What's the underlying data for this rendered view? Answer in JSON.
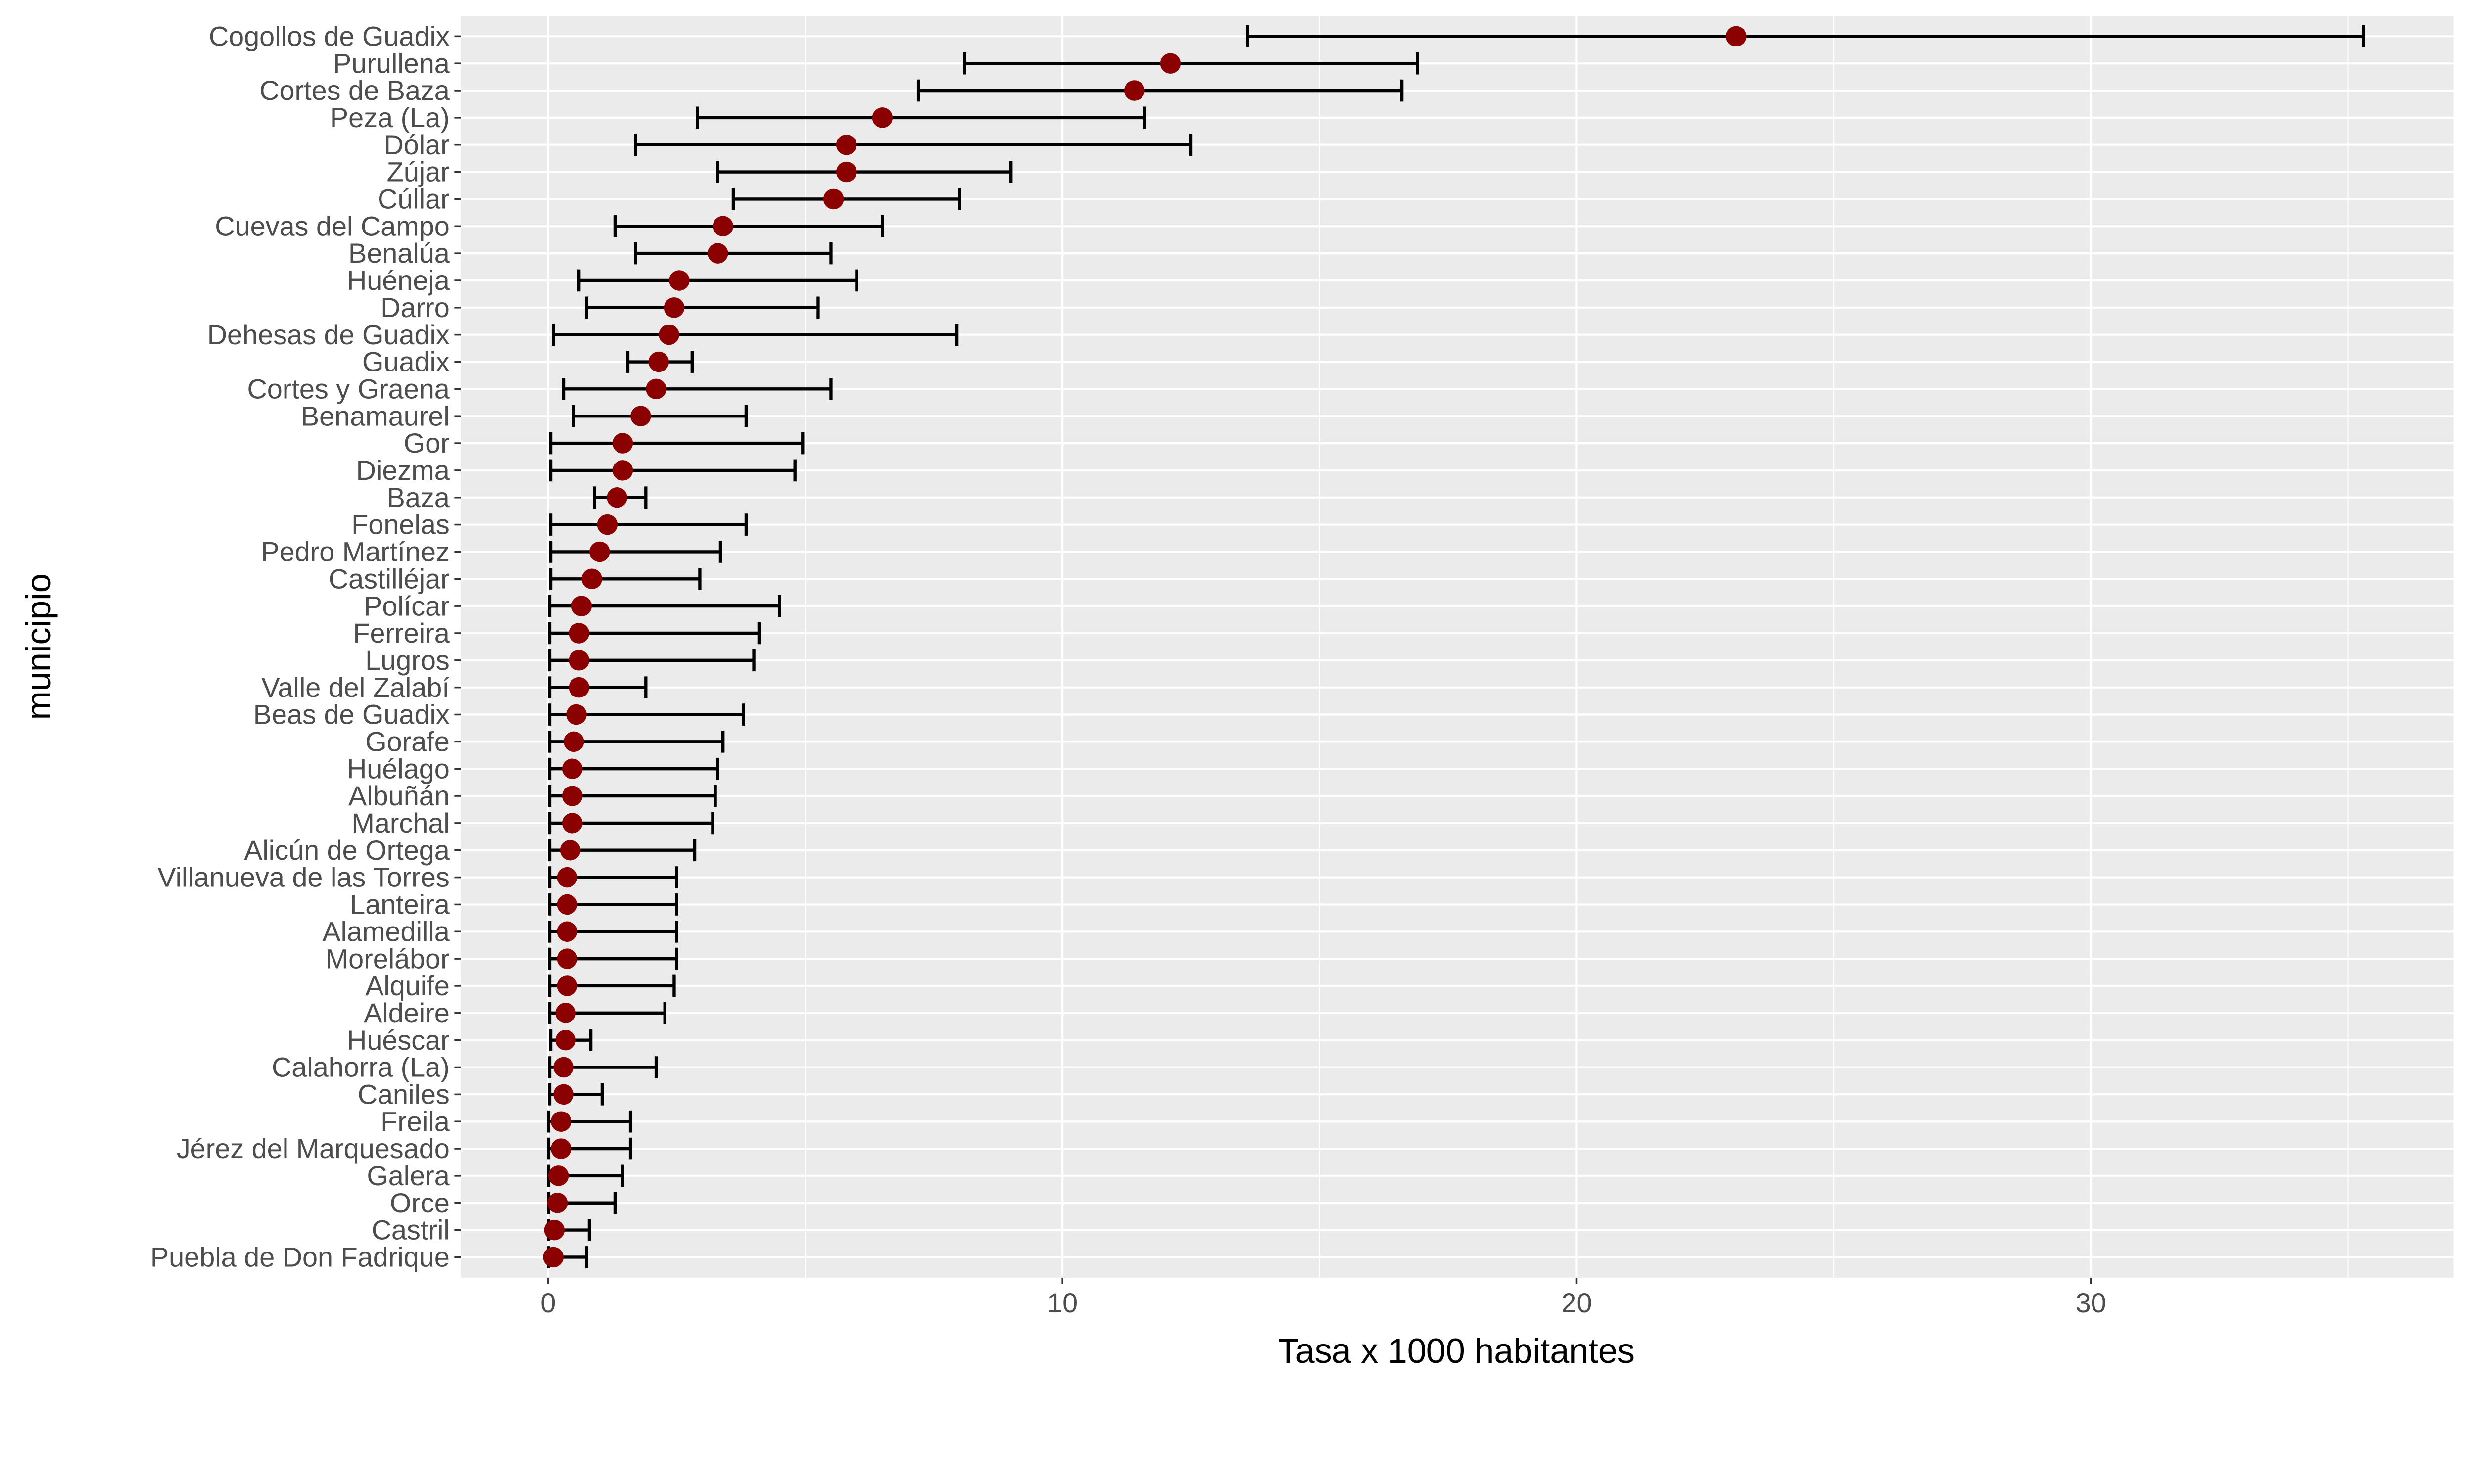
{
  "chart_data": {
    "type": "scatter",
    "subtype": "dot-with-errorbars",
    "title": "",
    "xlabel": "Tasa x 1000 habitantes",
    "ylabel": "municipio",
    "xlim": [
      -1.7,
      37.05
    ],
    "x_ticks": [
      0,
      10,
      20,
      30
    ],
    "grid": true,
    "point_color": "#8b0000",
    "errorbar_color": "#000000",
    "panel_color": "#ebebeb",
    "categories": [
      "Cogollos de Guadix",
      "Purullena",
      "Cortes de Baza",
      "Peza (La)",
      "Dólar",
      "Zújar",
      "Cúllar",
      "Cuevas del Campo",
      "Benalúa",
      "Huéneja",
      "Darro",
      "Dehesas de Guadix",
      "Guadix",
      "Cortes y Graena",
      "Benamaurel",
      "Gor",
      "Diezma",
      "Baza",
      "Fonelas",
      "Pedro Martínez",
      "Castilléjar",
      "Polícar",
      "Ferreira",
      "Lugros",
      "Valle del Zalabí",
      "Beas de Guadix",
      "Gorafe",
      "Huélago",
      "Albuñán",
      "Marchal",
      "Alicún de Ortega",
      "Villanueva de las Torres",
      "Lanteira",
      "Alamedilla",
      "Morelábor",
      "Alquife",
      "Aldeire",
      "Huéscar",
      "Calahorra (La)",
      "Caniles",
      "Freila",
      "Jérez del Marquesado",
      "Galera",
      "Orce",
      "Castril",
      "Puebla de Don Fadrique"
    ],
    "values": [
      23.1,
      12.1,
      11.4,
      6.5,
      5.8,
      5.8,
      5.55,
      3.4,
      3.3,
      2.55,
      2.45,
      2.35,
      2.15,
      2.1,
      1.8,
      1.45,
      1.45,
      1.34,
      1.15,
      1.0,
      0.85,
      0.65,
      0.6,
      0.6,
      0.6,
      0.55,
      0.5,
      0.47,
      0.47,
      0.47,
      0.43,
      0.37,
      0.37,
      0.37,
      0.37,
      0.37,
      0.34,
      0.34,
      0.3,
      0.3,
      0.25,
      0.25,
      0.2,
      0.18,
      0.12,
      0.1
    ],
    "lower": [
      13.6,
      8.1,
      7.2,
      2.9,
      1.7,
      3.3,
      3.6,
      1.3,
      1.7,
      0.6,
      0.75,
      0.1,
      1.55,
      0.3,
      0.5,
      0.05,
      0.05,
      0.9,
      0.05,
      0.05,
      0.05,
      0.03,
      0.03,
      0.03,
      0.03,
      0.03,
      0.03,
      0.03,
      0.03,
      0.03,
      0.03,
      0.03,
      0.03,
      0.03,
      0.03,
      0.03,
      0.03,
      0.05,
      0.03,
      0.03,
      0.01,
      0.01,
      0.01,
      0.01,
      0.01,
      0.01
    ],
    "upper": [
      35.3,
      16.9,
      16.6,
      11.6,
      12.5,
      9.0,
      8.0,
      6.5,
      5.5,
      6.0,
      5.25,
      7.95,
      2.8,
      5.5,
      3.85,
      4.95,
      4.8,
      1.9,
      3.85,
      3.35,
      2.95,
      4.5,
      4.1,
      4.0,
      1.9,
      3.8,
      3.4,
      3.3,
      3.25,
      3.2,
      2.85,
      2.5,
      2.5,
      2.5,
      2.5,
      2.45,
      2.27,
      0.83,
      2.1,
      1.05,
      1.6,
      1.6,
      1.45,
      1.3,
      0.8,
      0.75
    ]
  }
}
